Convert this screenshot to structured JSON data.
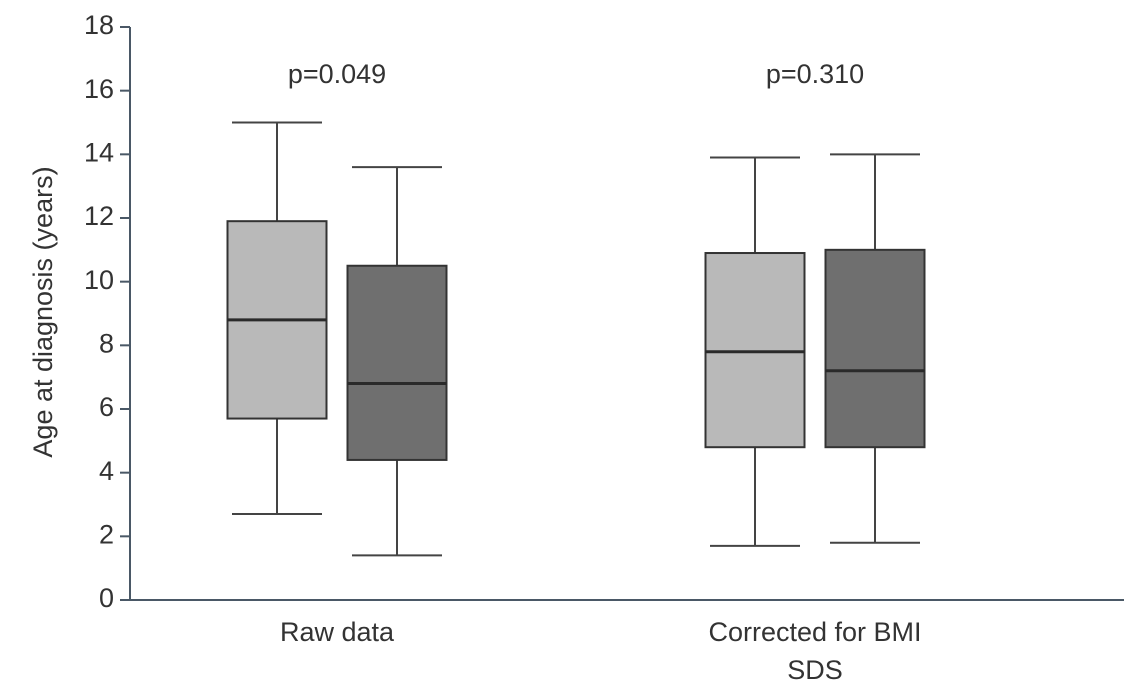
{
  "chart_data": {
    "type": "box",
    "y_label": "Age at diagnosis (years)",
    "categories": [
      "Raw data",
      "Corrected for BMI SDS"
    ],
    "annotations": [
      "p=0.049",
      "p=0.310"
    ],
    "ylim": [
      0,
      18
    ],
    "yticks": [
      0,
      2,
      4,
      6,
      8,
      10,
      12,
      14,
      16,
      18
    ],
    "series": [
      {
        "color": "#b9b9b9",
        "values": [
          [
            2.7,
            5.7,
            8.8,
            11.9,
            15.0
          ],
          [
            1.7,
            4.8,
            7.8,
            10.9,
            13.9
          ]
        ]
      },
      {
        "color": "#6f6f6f",
        "values": [
          [
            1.4,
            4.4,
            6.8,
            10.5,
            13.6
          ],
          [
            1.8,
            4.8,
            7.2,
            11.0,
            14.0
          ]
        ]
      }
    ]
  }
}
